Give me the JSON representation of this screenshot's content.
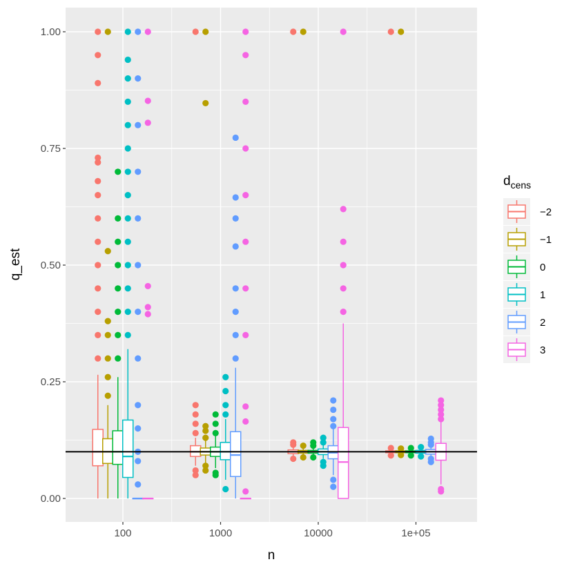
{
  "chart_data": {
    "type": "box",
    "xlabel": "n",
    "ylabel": "q_est",
    "x_scale": "log10",
    "x_ticks": [
      100,
      1000,
      10000,
      100000
    ],
    "x_tick_labels": [
      "100",
      "1000",
      "10000",
      "1e+05"
    ],
    "y_ticks": [
      0,
      0.25,
      0.5,
      0.75,
      1
    ],
    "y_tick_labels": [
      "0.00",
      "0.25",
      "0.50",
      "0.75",
      "1.00"
    ],
    "ylim": [
      -0.05,
      1.05
    ],
    "reference_line": 0.1,
    "legend": {
      "title_main": "d",
      "title_sub": "cens",
      "position": "right"
    },
    "groups": [
      {
        "name": "−2",
        "color": "#F8766D"
      },
      {
        "name": "−1",
        "color": "#B79F00"
      },
      {
        "name": "0",
        "color": "#00BA38"
      },
      {
        "name": "1",
        "color": "#00BFC4"
      },
      {
        "name": "2",
        "color": "#619CFF"
      },
      {
        "name": "3",
        "color": "#F564E3"
      }
    ],
    "boxes": [
      {
        "n": 100,
        "group": "−2",
        "whisker_low": 0,
        "q1": 0.07,
        "median": 0.1,
        "q3": 0.148,
        "whisker_high": 0.265,
        "outliers_low": [],
        "outliers_high": [
          0.3,
          0.35,
          0.4,
          0.45,
          0.5,
          0.55,
          0.6,
          0.65,
          0.68,
          0.72,
          0.73,
          0.89,
          0.95,
          1.0
        ]
      },
      {
        "n": 100,
        "group": "−1",
        "whisker_low": 0,
        "q1": 0.075,
        "median": 0.1,
        "q3": 0.128,
        "whisker_high": 0.2,
        "outliers_low": [],
        "outliers_high": [
          0.22,
          0.26,
          0.3,
          0.35,
          0.38,
          0.53,
          1.0
        ]
      },
      {
        "n": 100,
        "group": "0",
        "whisker_low": 0,
        "q1": 0.073,
        "median": 0.1,
        "q3": 0.145,
        "whisker_high": 0.26,
        "outliers_low": [],
        "outliers_high": [
          0.3,
          0.35,
          0.4,
          0.45,
          0.5,
          0.55,
          0.6,
          0.7
        ]
      },
      {
        "n": 100,
        "group": "1",
        "whisker_low": 0,
        "q1": 0.045,
        "median": 0.09,
        "q3": 0.168,
        "whisker_high": 0.32,
        "outliers_low": [],
        "outliers_high": [
          0.35,
          0.4,
          0.45,
          0.5,
          0.55,
          0.6,
          0.65,
          0.7,
          0.75,
          0.8,
          0.85,
          0.9,
          0.94,
          1.0
        ]
      },
      {
        "n": 100,
        "group": "2",
        "whisker_low": 0,
        "q1": 0,
        "median": 0,
        "q3": 0,
        "whisker_high": 0,
        "outliers_low": [],
        "outliers_high": [
          0.03,
          0.08,
          0.1,
          0.15,
          0.2,
          0.3,
          0.4,
          0.5,
          0.6,
          0.7,
          0.8,
          0.9,
          1.0
        ]
      },
      {
        "n": 100,
        "group": "3",
        "whisker_low": 0,
        "q1": 0,
        "median": 0,
        "q3": 0,
        "whisker_high": 0,
        "outliers_low": [],
        "outliers_high": [
          0.395,
          0.41,
          0.455,
          0.805,
          0.852,
          1.0
        ]
      },
      {
        "n": 1000,
        "group": "−2",
        "whisker_low": 0.07,
        "q1": 0.09,
        "median": 0.1,
        "q3": 0.113,
        "whisker_high": 0.13,
        "outliers_low": [
          0.05,
          0.06
        ],
        "outliers_high": [
          0.14,
          0.16,
          0.18,
          0.2,
          1.0
        ]
      },
      {
        "n": 1000,
        "group": "−1",
        "whisker_low": 0.075,
        "q1": 0.093,
        "median": 0.1,
        "q3": 0.108,
        "whisker_high": 0.125,
        "outliers_low": [
          0.06,
          0.07
        ],
        "outliers_high": [
          0.13,
          0.145,
          0.155,
          0.847,
          1.0
        ]
      },
      {
        "n": 1000,
        "group": "0",
        "whisker_low": 0.065,
        "q1": 0.09,
        "median": 0.1,
        "q3": 0.11,
        "whisker_high": 0.135,
        "outliers_low": [
          0.05,
          0.055
        ],
        "outliers_high": [
          0.14,
          0.16,
          0.18
        ]
      },
      {
        "n": 1000,
        "group": "1",
        "whisker_low": 0.04,
        "q1": 0.083,
        "median": 0.1,
        "q3": 0.12,
        "whisker_high": 0.17,
        "outliers_low": [
          0.02
        ],
        "outliers_high": [
          0.18,
          0.2,
          0.23,
          0.26
        ]
      },
      {
        "n": 1000,
        "group": "2",
        "whisker_low": 0,
        "q1": 0.047,
        "median": 0.093,
        "q3": 0.143,
        "whisker_high": 0.28,
        "outliers_low": [],
        "outliers_high": [
          0.3,
          0.35,
          0.4,
          0.45,
          0.54,
          0.6,
          0.645,
          0.773
        ]
      },
      {
        "n": 1000,
        "group": "3",
        "whisker_low": 0,
        "q1": 0,
        "median": 0,
        "q3": 0,
        "whisker_high": 0,
        "outliers_low": [],
        "outliers_high": [
          0.015,
          0.165,
          0.197,
          0.35,
          0.45,
          0.55,
          0.65,
          0.75,
          0.85,
          0.95,
          1.0
        ]
      },
      {
        "n": 10000,
        "group": "−2",
        "whisker_low": 0.09,
        "q1": 0.096,
        "median": 0.1,
        "q3": 0.104,
        "whisker_high": 0.11,
        "outliers_low": [
          0.085
        ],
        "outliers_high": [
          0.115,
          0.12,
          1.0
        ]
      },
      {
        "n": 10000,
        "group": "−1",
        "whisker_low": 0.09,
        "q1": 0.097,
        "median": 0.1,
        "q3": 0.103,
        "whisker_high": 0.11,
        "outliers_low": [
          0.088
        ],
        "outliers_high": [
          0.113,
          1.0
        ]
      },
      {
        "n": 10000,
        "group": "0",
        "whisker_low": 0.09,
        "q1": 0.097,
        "median": 0.1,
        "q3": 0.103,
        "whisker_high": 0.11,
        "outliers_low": [
          0.088
        ],
        "outliers_high": [
          0.113,
          0.12
        ]
      },
      {
        "n": 10000,
        "group": "1",
        "whisker_low": 0.085,
        "q1": 0.094,
        "median": 0.1,
        "q3": 0.106,
        "whisker_high": 0.115,
        "outliers_low": [
          0.07,
          0.078
        ],
        "outliers_high": [
          0.12,
          0.13
        ]
      },
      {
        "n": 10000,
        "group": "2",
        "whisker_low": 0.05,
        "q1": 0.085,
        "median": 0.098,
        "q3": 0.113,
        "whisker_high": 0.15,
        "outliers_low": [
          0.025,
          0.04
        ],
        "outliers_high": [
          0.155,
          0.17,
          0.19,
          0.21
        ]
      },
      {
        "n": 10000,
        "group": "3",
        "whisker_low": 0,
        "q1": 0,
        "median": 0.078,
        "q3": 0.152,
        "whisker_high": 0.375,
        "outliers_low": [],
        "outliers_high": [
          0.4,
          0.45,
          0.5,
          0.55,
          0.62,
          1.0
        ]
      },
      {
        "n": 100000,
        "group": "−2",
        "whisker_low": 0.095,
        "q1": 0.098,
        "median": 0.1,
        "q3": 0.102,
        "whisker_high": 0.105,
        "outliers_low": [
          0.092
        ],
        "outliers_high": [
          0.108,
          1.0
        ]
      },
      {
        "n": 100000,
        "group": "−1",
        "whisker_low": 0.095,
        "q1": 0.098,
        "median": 0.1,
        "q3": 0.102,
        "whisker_high": 0.105,
        "outliers_low": [
          0.093
        ],
        "outliers_high": [
          0.107,
          1.0
        ]
      },
      {
        "n": 100000,
        "group": "0",
        "whisker_low": 0.095,
        "q1": 0.098,
        "median": 0.1,
        "q3": 0.102,
        "whisker_high": 0.105,
        "outliers_low": [
          0.092
        ],
        "outliers_high": [
          0.108
        ]
      },
      {
        "n": 100000,
        "group": "1",
        "whisker_low": 0.093,
        "q1": 0.097,
        "median": 0.1,
        "q3": 0.103,
        "whisker_high": 0.107,
        "outliers_low": [
          0.09
        ],
        "outliers_high": [
          0.11
        ]
      },
      {
        "n": 100000,
        "group": "2",
        "whisker_low": 0.09,
        "q1": 0.095,
        "median": 0.1,
        "q3": 0.105,
        "whisker_high": 0.11,
        "outliers_low": [
          0.078,
          0.085
        ],
        "outliers_high": [
          0.115,
          0.12,
          0.128
        ]
      },
      {
        "n": 100000,
        "group": "3",
        "whisker_low": 0.03,
        "q1": 0.082,
        "median": 0.1,
        "q3": 0.118,
        "whisker_high": 0.165,
        "outliers_low": [
          0.015,
          0.02
        ],
        "outliers_high": [
          0.17,
          0.18,
          0.19,
          0.2,
          0.21
        ]
      }
    ]
  }
}
